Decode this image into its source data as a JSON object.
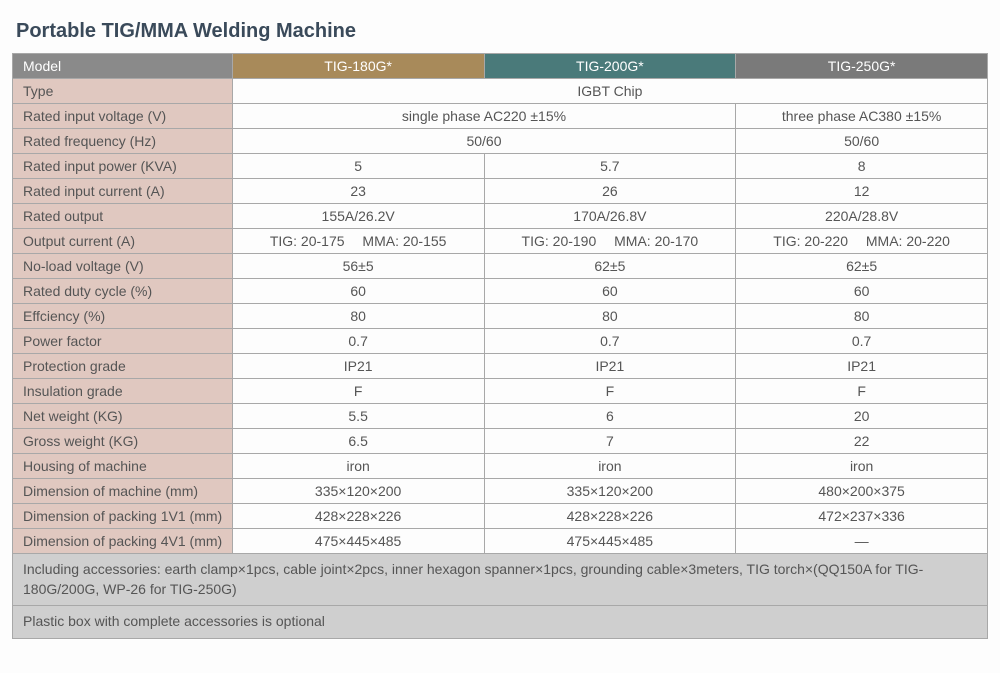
{
  "title": "Portable TIG/MMA Welding Machine",
  "header": {
    "label": "Model",
    "cols": [
      "TIG-180G*",
      "TIG-200G*",
      "TIG-250G*"
    ]
  },
  "rows": [
    {
      "label": "Type",
      "span": 3,
      "vals": [
        "IGBT Chip"
      ]
    },
    {
      "label": "Rated input voltage (V)",
      "span": "2+1",
      "vals": [
        "single phase AC220 ±15%",
        "three phase AC380 ±15%"
      ]
    },
    {
      "label": "Rated frequency (Hz)",
      "span": "2+1",
      "vals": [
        "50/60",
        "50/60"
      ]
    },
    {
      "label": "Rated input power (KVA)",
      "vals": [
        "5",
        "5.7",
        "8"
      ]
    },
    {
      "label": "Rated input current (A)",
      "vals": [
        "23",
        "26",
        "12"
      ]
    },
    {
      "label": "Rated output",
      "vals": [
        "155A/26.2V",
        "170A/26.8V",
        "220A/28.8V"
      ]
    },
    {
      "label": "Output current (A)",
      "vals": [
        "TIG: 20-175  MMA: 20-155",
        "TIG: 20-190  MMA: 20-170",
        "TIG: 20-220  MMA: 20-220"
      ]
    },
    {
      "label": "No-load voltage (V)",
      "vals": [
        "56±5",
        "62±5",
        "62±5"
      ]
    },
    {
      "label": "Rated duty cycle (%)",
      "vals": [
        "60",
        "60",
        "60"
      ]
    },
    {
      "label": "Effciency (%)",
      "vals": [
        "80",
        "80",
        "80"
      ]
    },
    {
      "label": "Power factor",
      "vals": [
        "0.7",
        "0.7",
        "0.7"
      ]
    },
    {
      "label": "Protection grade",
      "vals": [
        "IP21",
        "IP21",
        "IP21"
      ]
    },
    {
      "label": "Insulation grade",
      "vals": [
        "F",
        "F",
        "F"
      ]
    },
    {
      "label": "Net weight (KG)",
      "vals": [
        "5.5",
        "6",
        "20"
      ]
    },
    {
      "label": "Gross weight (KG)",
      "vals": [
        "6.5",
        "7",
        "22"
      ]
    },
    {
      "label": "Housing of machine",
      "vals": [
        "iron",
        "iron",
        "iron"
      ]
    },
    {
      "label": "Dimension of machine (mm)",
      "vals": [
        "335×120×200",
        "335×120×200",
        "480×200×375"
      ]
    },
    {
      "label": "Dimension of packing 1V1 (mm)",
      "vals": [
        "428×228×226",
        "428×228×226",
        "472×237×336"
      ]
    },
    {
      "label": "Dimension of packing 4V1 (mm)",
      "vals": [
        "475×445×485",
        "475×445×485",
        "—"
      ]
    }
  ],
  "footer": [
    "Including accessories: earth clamp×1pcs, cable joint×2pcs, inner hexagon spanner×1pcs, grounding cable×3meters, TIG torch×(QQ150A for TIG-180G/200G, WP-26 for TIG-250G)",
    "Plastic box with complete accessories is optional"
  ],
  "colors": {
    "label_bg": "#e0c8c0",
    "hdr_label": "#8a8a8a",
    "hdr_col1": "#a88a5a",
    "hdr_col2": "#4a7a7a",
    "hdr_col3": "#7a7a7a",
    "footer_bg": "#cfcfcf",
    "border": "#a8a8a8"
  }
}
